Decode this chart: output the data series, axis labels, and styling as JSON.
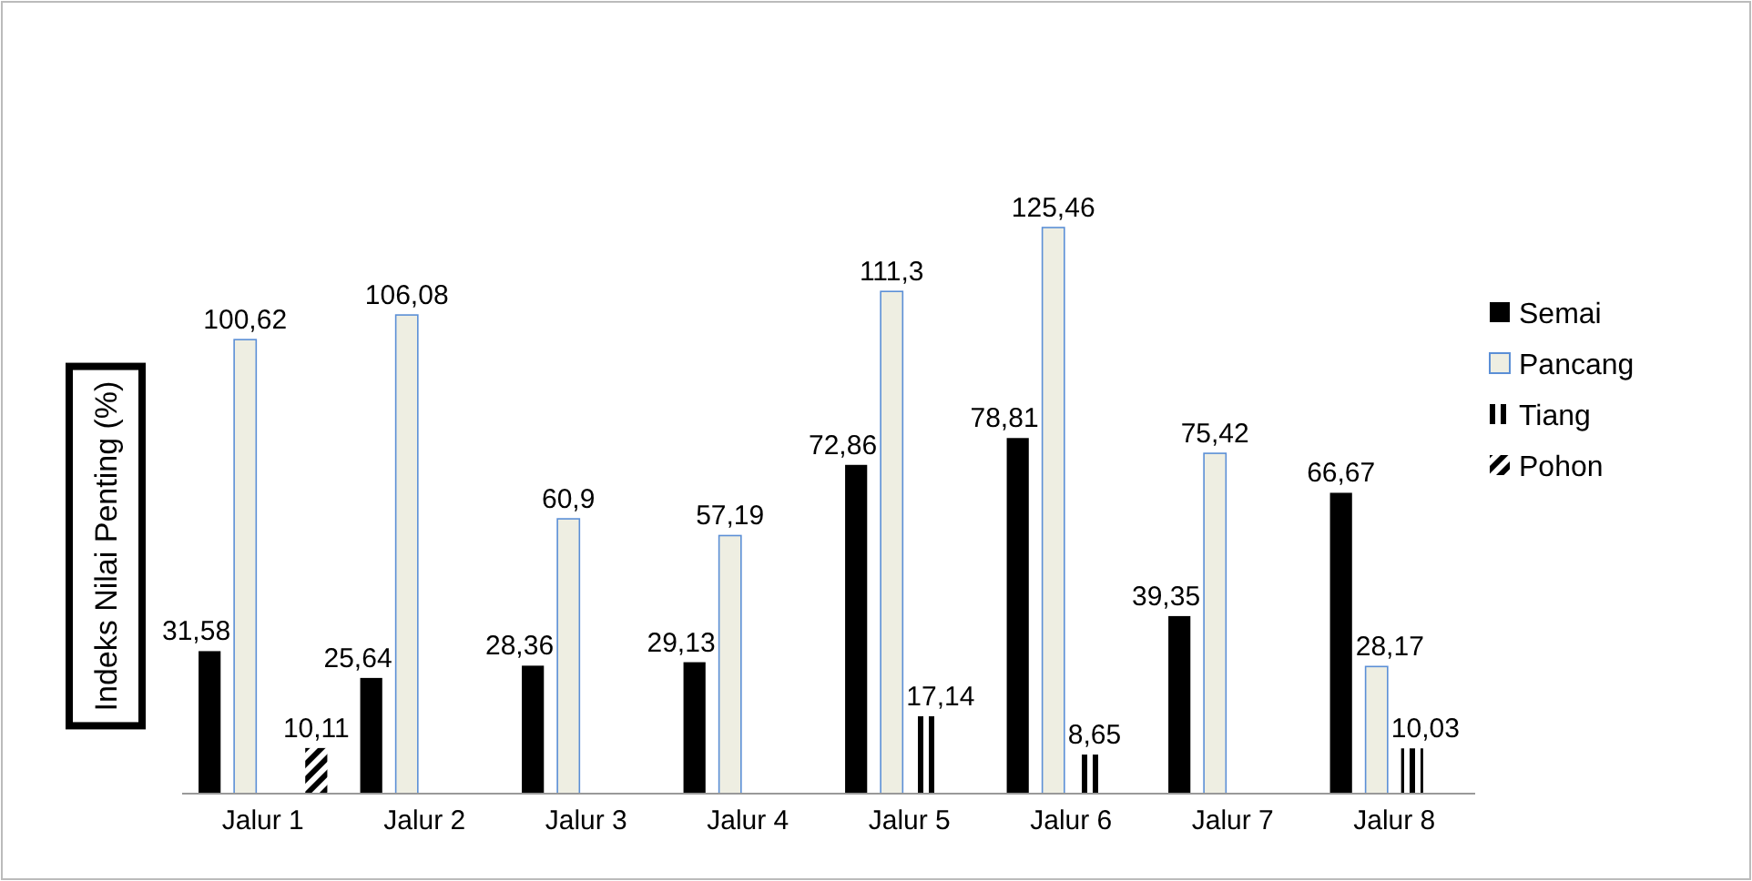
{
  "chart_data": {
    "type": "bar",
    "ylabel": "Indeks Nilai Penting (%)",
    "categories": [
      "Jalur 1",
      "Jalur 2",
      "Jalur 3",
      "Jalur 4",
      "Jalur 5",
      "Jalur 6",
      "Jalur 7",
      "Jalur 8"
    ],
    "series": [
      {
        "name": "Semai",
        "color": "#000000",
        "values": [
          31.58,
          25.64,
          28.36,
          29.13,
          72.86,
          78.81,
          39.35,
          66.67
        ],
        "value_labels": [
          "31,58",
          "25,64",
          "28,36",
          "29,13",
          "72,86",
          "78,81",
          "39,35",
          "66,67"
        ]
      },
      {
        "name": "Pancang",
        "color": "#eeeee2",
        "values": [
          100.62,
          106.08,
          60.9,
          57.19,
          111.3,
          125.46,
          75.42,
          28.17
        ],
        "value_labels": [
          "100,62",
          "106,08",
          "60,9",
          "57,19",
          "111,3",
          "125,46",
          "75,42",
          "28,17"
        ]
      },
      {
        "name": "Tiang",
        "color": "#000000",
        "values": [
          null,
          null,
          null,
          null,
          17.14,
          8.65,
          null,
          10.03
        ],
        "value_labels": [
          null,
          null,
          null,
          null,
          "17,14",
          "8,65",
          null,
          "10,03"
        ]
      },
      {
        "name": "Pohon",
        "color": "#000000",
        "values": [
          10.11,
          null,
          null,
          null,
          null,
          null,
          null,
          null
        ],
        "value_labels": [
          "10,11",
          null,
          null,
          null,
          null,
          null,
          null,
          null
        ]
      }
    ],
    "legend": "right"
  }
}
